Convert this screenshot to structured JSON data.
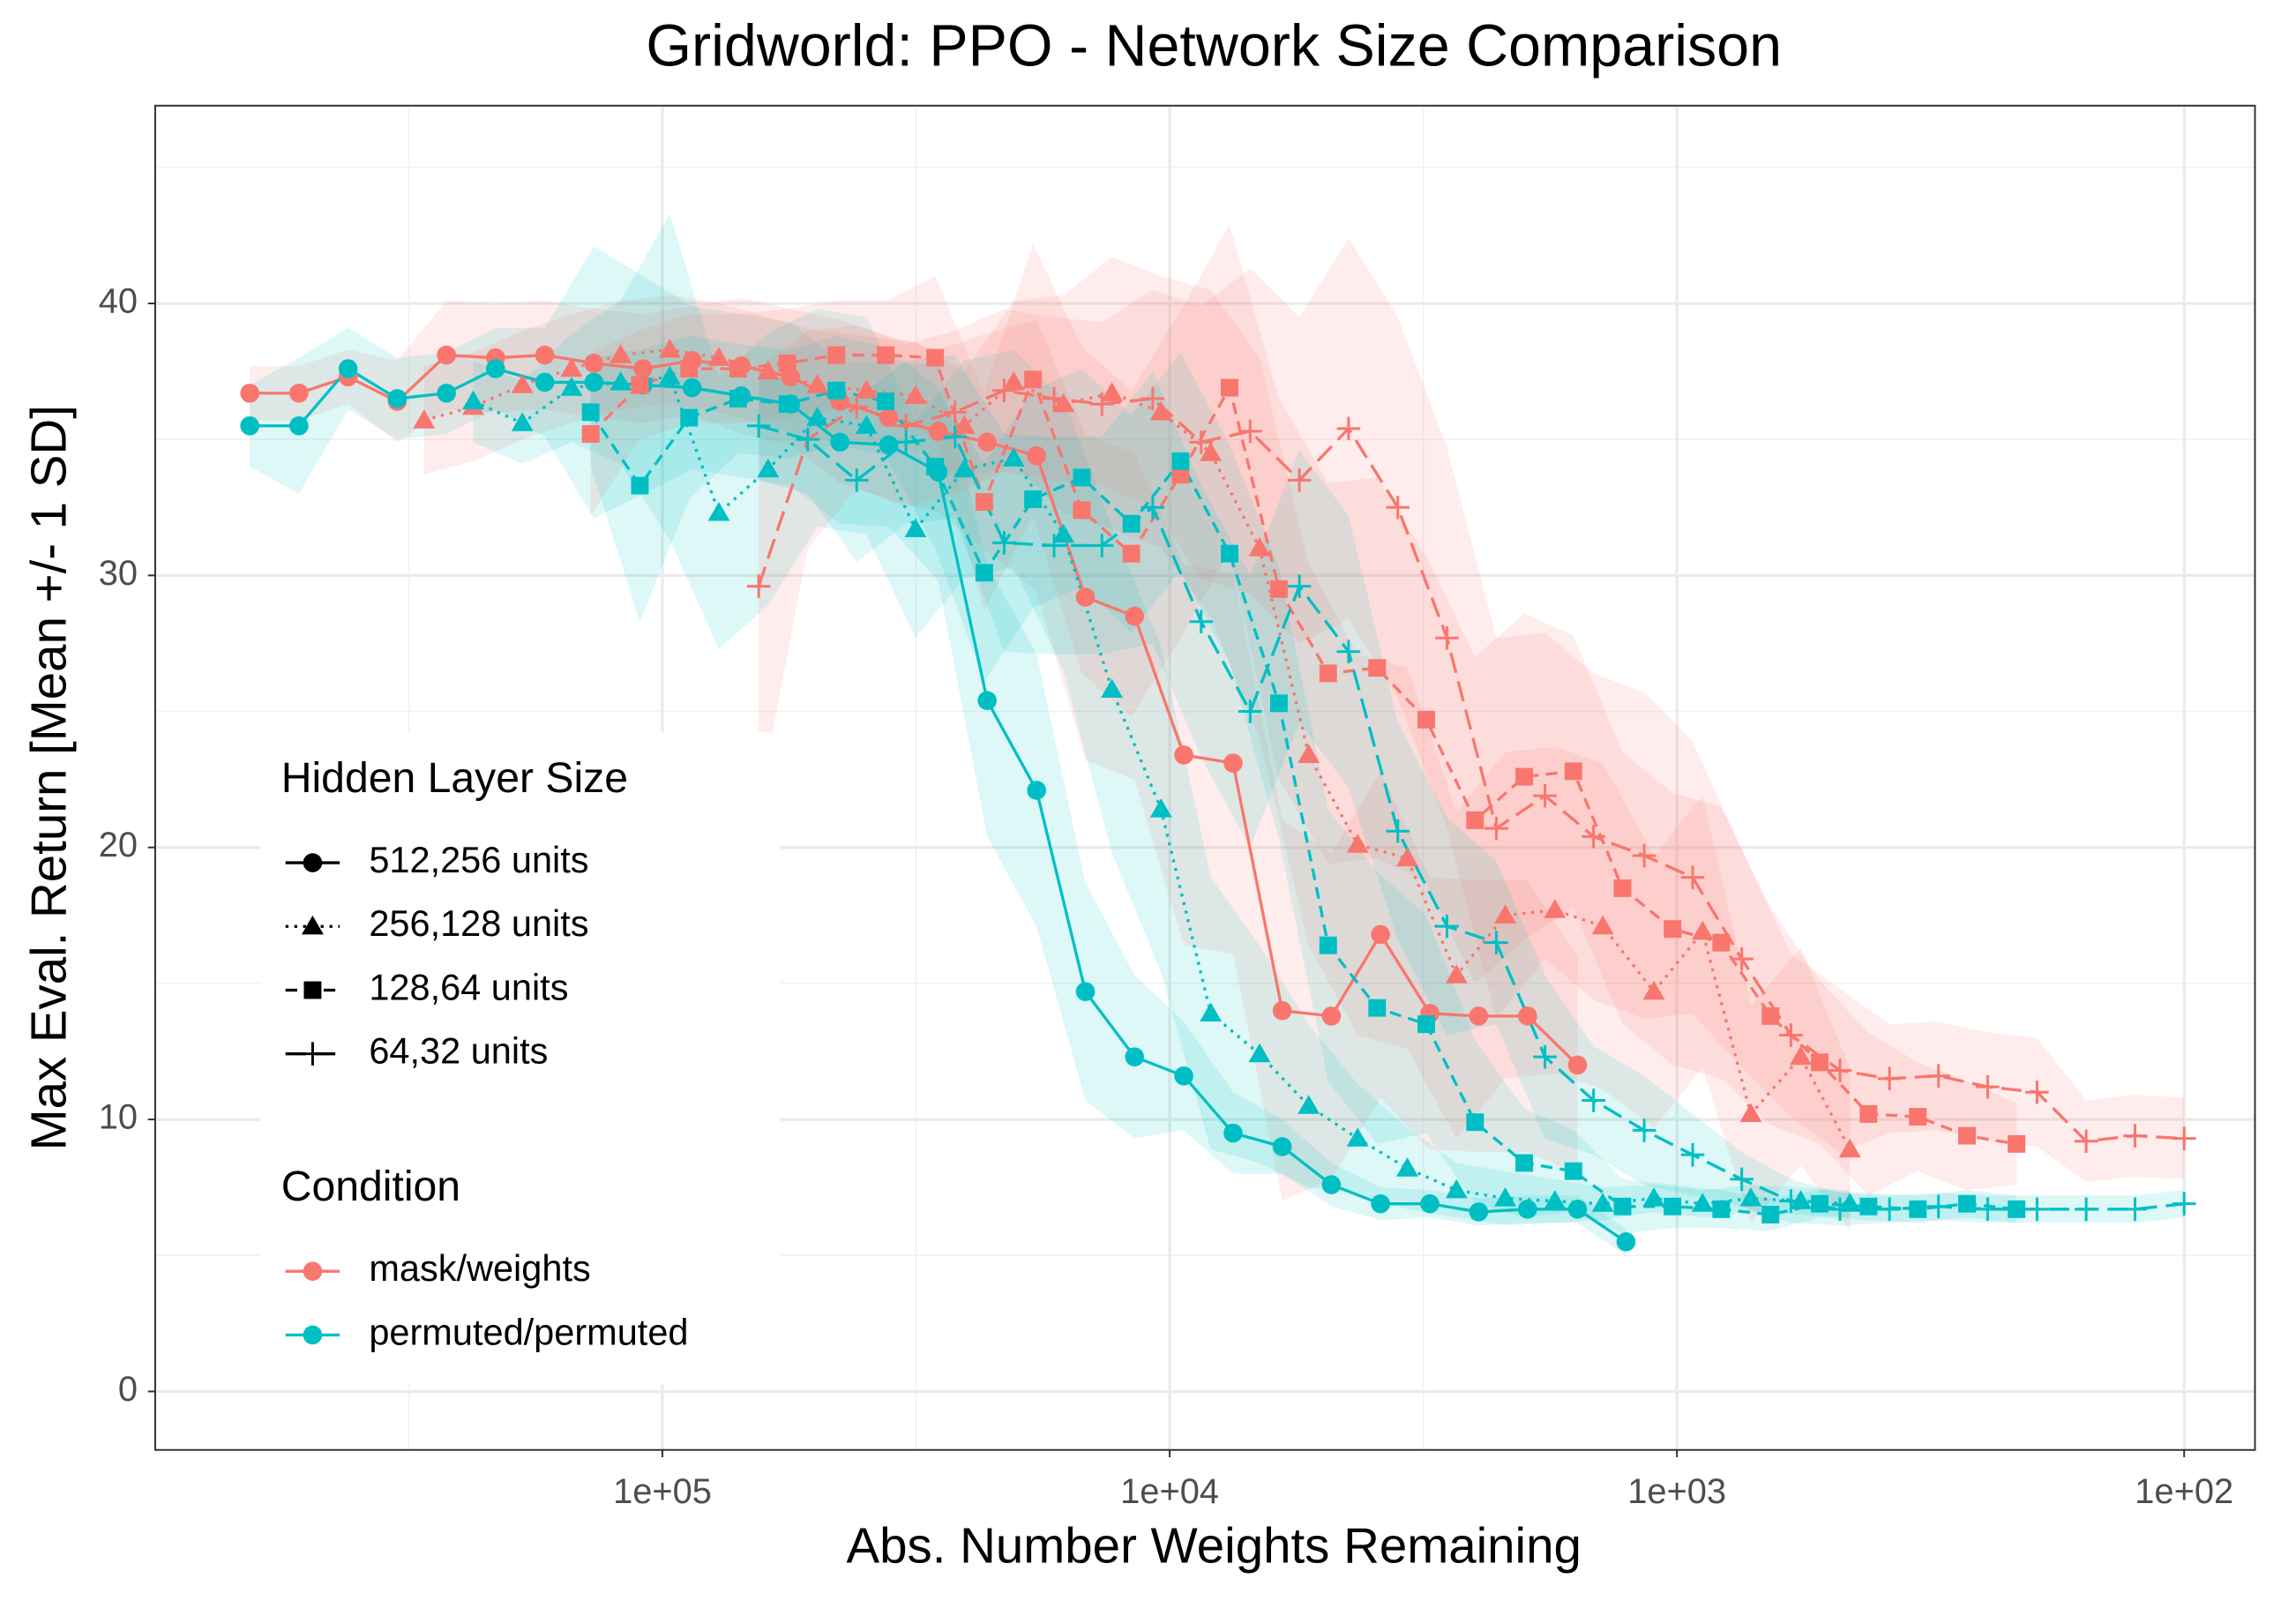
{
  "chart_data": {
    "type": "line",
    "title": "Gridworld: PPO - Network Size Comparison",
    "x_label": "Abs. Number Weights Remaining",
    "y_label": "Max Eval. Return [Mean +/- 1 SD]",
    "xscale": "log",
    "xreversed": true,
    "xlim": [
      1000000,
      72.5
    ],
    "ylim": [
      -2.15,
      47.27
    ],
    "xticks": [
      {
        "value": 100000,
        "label": "1e+05"
      },
      {
        "value": 10000,
        "label": "1e+04"
      },
      {
        "value": 1000,
        "label": "1e+03"
      },
      {
        "value": 100,
        "label": "1e+02"
      }
    ],
    "xminor": [
      316228,
      31623,
      3162
    ],
    "yticks": [
      0,
      10,
      20,
      30,
      40
    ],
    "yminor": [
      5,
      15,
      25,
      35,
      45
    ],
    "grid": true,
    "legend": {
      "sizes": {
        "title": "Hidden Layer Size",
        "items": [
          {
            "name": "512,256 units",
            "shape": "circle",
            "linetype": "solid"
          },
          {
            "name": "256,128 units",
            "shape": "triangle",
            "linetype": "dotted"
          },
          {
            "name": "128,64 units",
            "shape": "square",
            "linetype": "dashed"
          },
          {
            "name": "64,32 units",
            "shape": "plus",
            "linetype": "longdash"
          }
        ]
      },
      "conditions": {
        "title": "Condition",
        "items": [
          {
            "name": "mask/weights",
            "color": "#F8766D"
          },
          {
            "name": "permuted/permuted",
            "color": "#00BFC4"
          }
        ]
      }
    },
    "series": [
      {
        "size": "512,256 units",
        "condition": "mask/weights",
        "x": [
          651000,
          520800,
          416600,
          333300,
          266600,
          213300,
          170600,
          136500,
          109200,
          87400,
          69900,
          55900,
          44700,
          35800,
          28600,
          22900,
          18300,
          14660,
          11730,
          9380,
          7500,
          6000,
          4800,
          3840,
          3070,
          2460,
          1970,
          1570
        ],
        "values": [
          36.7,
          36.7,
          37.3,
          36.4,
          38.1,
          38.0,
          38.1,
          37.8,
          37.6,
          37.9,
          37.7,
          37.3,
          36.4,
          35.8,
          35.3,
          34.9,
          34.4,
          29.2,
          28.5,
          23.4,
          23.1,
          14.0,
          13.8,
          16.8,
          13.9,
          13.8,
          13.8,
          12.0
        ],
        "sd": [
          1.0,
          1.0,
          1.0,
          1.5,
          2,
          2,
          2,
          2,
          2,
          2,
          2.5,
          2.5,
          3,
          3,
          3,
          4,
          5,
          6,
          6,
          7,
          7,
          7,
          6,
          6,
          5,
          5,
          5,
          4
        ]
      },
      {
        "size": "512,256 units",
        "condition": "permuted/permuted",
        "x": [
          651000,
          520800,
          416600,
          333300,
          266600,
          213300,
          170600,
          136500,
          109200,
          87400,
          69900,
          55900,
          44700,
          35800,
          28600,
          22900,
          18300,
          14660,
          11730,
          9380,
          7500,
          6000,
          4800,
          3840,
          3070,
          2460,
          1970,
          1570,
          1260
        ],
        "values": [
          35.5,
          35.5,
          37.6,
          36.5,
          36.7,
          37.6,
          37.1,
          37.1,
          37.0,
          36.9,
          36.6,
          36.3,
          34.9,
          34.8,
          33.8,
          25.4,
          22.1,
          14.7,
          12.3,
          11.6,
          9.5,
          9.0,
          7.6,
          6.9,
          6.9,
          6.6,
          6.7,
          6.7,
          5.5
        ],
        "sd": [
          1.5,
          2.5,
          1.5,
          1.5,
          1.5,
          1.5,
          2,
          5,
          4,
          3,
          3,
          3,
          3,
          3,
          4,
          5,
          5,
          4,
          3,
          2,
          1.5,
          1,
          0.8,
          0.6,
          0.5,
          0.5,
          0.5,
          0.5,
          0.5
        ]
      },
      {
        "size": "256,128 units",
        "condition": "mask/weights",
        "x": [
          295100,
          236100,
          188900,
          151100,
          120900,
          96700,
          77400,
          61900,
          49500,
          39600,
          31700,
          25400,
          20300,
          16200,
          13000,
          10400,
          8300,
          6650,
          5320,
          4260,
          3400,
          2720,
          2180,
          1740,
          1400,
          1110,
          890,
          715,
          570,
          456
        ],
        "values": [
          35.7,
          36.2,
          37.0,
          37.6,
          38.1,
          38.3,
          38.0,
          37.5,
          37.0,
          36.8,
          36.6,
          35.5,
          37.1,
          36.3,
          36.7,
          36.0,
          34.5,
          31.0,
          23.4,
          20.1,
          19.6,
          15.3,
          17.5,
          17.7,
          17.1,
          14.7,
          16.9,
          10.2,
          12.3,
          8.9
        ],
        "sd": [
          2,
          2,
          2,
          2,
          2,
          2,
          2,
          2,
          2,
          2,
          2,
          2,
          3,
          4,
          5,
          5,
          6,
          7,
          7,
          7,
          7,
          6,
          6,
          6,
          6,
          5,
          5,
          4,
          4,
          3
        ]
      },
      {
        "size": "256,128 units",
        "condition": "permuted/permuted",
        "x": [
          236100,
          188900,
          151100,
          120900,
          96700,
          77400,
          61900,
          49500,
          39600,
          31700,
          25400,
          20300,
          16200,
          13000,
          10400,
          8300,
          6650,
          5320,
          4260,
          3400,
          2720,
          2180,
          1740,
          1400,
          1110,
          890,
          715,
          570,
          456
        ],
        "values": [
          36.4,
          35.6,
          36.9,
          37.1,
          37.3,
          32.3,
          33.9,
          35.8,
          35.5,
          31.7,
          33.9,
          34.3,
          31.5,
          25.8,
          21.4,
          13.9,
          12.4,
          10.5,
          9.3,
          8.2,
          7.4,
          7.1,
          7.0,
          6.9,
          7.1,
          6.9,
          7.1,
          7.0,
          6.9
        ],
        "sd": [
          1.5,
          1.5,
          2,
          3,
          6,
          5,
          5,
          4,
          4,
          4,
          4,
          4,
          5,
          6,
          6,
          5,
          4,
          3,
          2,
          1.5,
          1,
          1,
          0.8,
          0.6,
          0.5,
          0.5,
          0.5,
          0.5,
          0.5
        ]
      },
      {
        "size": "128,64 units",
        "condition": "mask/weights",
        "x": [
          138500,
          110800,
          88600,
          70900,
          56700,
          45400,
          36300,
          29000,
          23200,
          18600,
          14900,
          11900,
          9520,
          7620,
          6090,
          4870,
          3900,
          3120,
          2500,
          2000,
          1600,
          1280,
          1020,
          818,
          654,
          523,
          419,
          335,
          268,
          214
        ],
        "values": [
          35.2,
          37.0,
          37.6,
          37.6,
          37.8,
          38.1,
          38.1,
          38.0,
          32.7,
          37.2,
          32.4,
          30.8,
          33.7,
          36.9,
          29.5,
          26.4,
          26.6,
          24.7,
          21.0,
          22.6,
          22.8,
          18.5,
          17.0,
          16.5,
          13.8,
          12.1,
          10.2,
          10.1,
          9.4,
          9.1
        ],
        "sd": [
          3,
          2,
          2,
          2,
          2,
          2,
          2,
          3,
          4,
          5,
          6,
          6,
          6,
          6,
          7,
          7,
          7,
          6,
          6,
          6,
          5,
          5,
          5,
          5,
          4,
          3,
          3,
          2,
          2,
          1.5
        ]
      },
      {
        "size": "128,64 units",
        "condition": "permuted/permuted",
        "x": [
          138500,
          110800,
          88600,
          70900,
          56700,
          45400,
          36300,
          29000,
          23200,
          18600,
          14900,
          11900,
          9520,
          7620,
          6090,
          4870,
          3900,
          3120,
          2500,
          2000,
          1600,
          1280,
          1020,
          818,
          654,
          523,
          419,
          335,
          268,
          214
        ],
        "values": [
          36.0,
          33.3,
          35.8,
          36.5,
          36.3,
          36.8,
          36.4,
          34.0,
          30.1,
          32.8,
          33.6,
          31.9,
          34.2,
          30.8,
          25.3,
          16.4,
          14.1,
          13.5,
          9.9,
          8.4,
          8.1,
          6.8,
          6.8,
          6.7,
          6.5,
          6.9,
          6.8,
          6.7,
          6.9,
          6.7
        ],
        "sd": [
          2,
          5,
          3,
          2,
          2,
          2,
          2,
          3,
          4,
          4,
          4,
          4,
          4,
          4,
          5,
          5,
          5,
          4,
          3,
          2,
          1.5,
          1,
          0.8,
          0.7,
          0.6,
          0.5,
          0.5,
          0.5,
          0.5,
          0.5
        ]
      },
      {
        "size": "64,32 units",
        "condition": "mask/weights",
        "x": [
          64600,
          51700,
          41400,
          33100,
          26500,
          21200,
          16900,
          13600,
          10800,
          8670,
          6940,
          5550,
          4440,
          3550,
          2840,
          2270,
          1820,
          1460,
          1160,
          931,
          745,
          596,
          477,
          381,
          305,
          244,
          195,
          156,
          125,
          100
        ],
        "values": [
          29.6,
          35.0,
          36.2,
          35.5,
          36.0,
          36.8,
          36.5,
          36.3,
          36.5,
          34.9,
          35.3,
          33.5,
          35.4,
          32.5,
          27.7,
          20.7,
          21.9,
          20.4,
          19.7,
          18.9,
          15.9,
          13.1,
          11.8,
          11.5,
          11.6,
          11.2,
          11.0,
          9.2,
          9.4,
          9.3
        ],
        "sd": [
          8,
          4,
          3,
          3,
          3,
          3,
          3,
          3,
          4,
          5,
          6,
          6,
          7,
          7,
          7,
          7,
          6,
          6,
          6,
          5,
          4,
          3,
          3,
          2,
          2,
          2,
          2,
          1.5,
          1.5,
          1.5
        ]
      },
      {
        "size": "64,32 units",
        "condition": "permuted/permuted",
        "x": [
          64600,
          51700,
          41400,
          33100,
          26500,
          21200,
          16900,
          13600,
          10800,
          8670,
          6940,
          5550,
          4440,
          3550,
          2840,
          2270,
          1820,
          1460,
          1160,
          931,
          745,
          596,
          477,
          381,
          305,
          244,
          195,
          156,
          125,
          100
        ],
        "values": [
          35.5,
          35.0,
          33.5,
          34.9,
          35.1,
          31.2,
          31.1,
          31.1,
          32.5,
          28.3,
          25.0,
          29.6,
          27.2,
          20.6,
          17.1,
          16.5,
          12.3,
          10.7,
          9.6,
          8.7,
          7.8,
          7.0,
          6.7,
          6.7,
          6.8,
          6.7,
          6.7,
          6.7,
          6.7,
          6.9
        ],
        "sd": [
          2,
          2,
          3,
          3,
          3,
          4,
          4,
          4,
          5,
          5,
          5,
          5,
          5,
          4,
          4,
          3,
          3,
          2,
          2,
          1.5,
          1,
          0.8,
          0.6,
          0.5,
          0.5,
          0.5,
          0.5,
          0.5,
          0.5,
          0.5
        ]
      }
    ]
  }
}
